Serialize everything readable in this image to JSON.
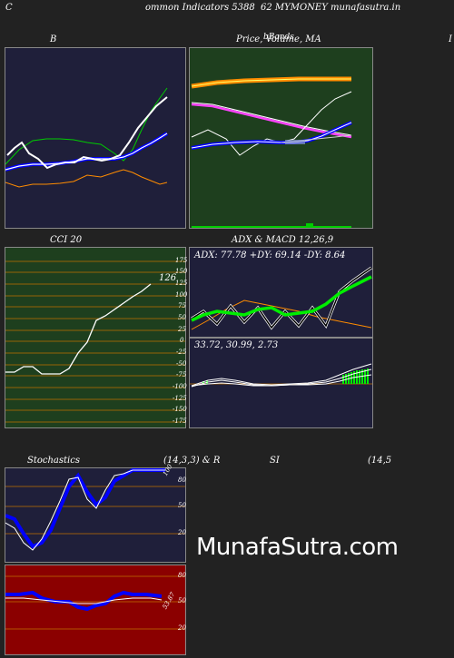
{
  "header": {
    "left": "C",
    "center": "ommon  Indicators 5388",
    "right": "62  MYMONEY munafasutra.in"
  },
  "panels": {
    "bb": {
      "title": "B",
      "bg": "#1f1f3a"
    },
    "price": {
      "title": "Price,  Volume,  MA",
      "overlay": "bBands",
      "bg": "#1e3f1e"
    },
    "cci": {
      "title": "CCI 20",
      "value_label": "126",
      "ticks": [
        "175",
        "150",
        "125",
        "100",
        "75",
        "50",
        "25",
        "0",
        "-25",
        "-50",
        "-75",
        "-100",
        "-125",
        "-150",
        "-175"
      ],
      "bg": "#1e3f1e"
    },
    "adx": {
      "title": "ADX  & MACD 12,26,9",
      "readout": "ADX: 77.78   +DY: 69.14   -DY: 8.64",
      "bg": "#1f1f3a"
    },
    "macd": {
      "readout": "33.72,  30.99,  2.73",
      "bg": "#1f1f3a"
    },
    "stoch": {
      "title_left": "Stochastics",
      "title_mid": "(14,3,3) & R",
      "title_right": "SI",
      "title_far": "(14,5",
      "ticks": [
        "80",
        "50",
        "20"
      ],
      "value_label": "100",
      "bg": "#1f1f3a"
    },
    "rsi": {
      "ticks": [
        "80",
        "50",
        "20"
      ],
      "value_label": "53.87",
      "bg": "#8b0000"
    }
  },
  "right_edge_letter": "I",
  "watermark": "MunafaSutra.com"
}
